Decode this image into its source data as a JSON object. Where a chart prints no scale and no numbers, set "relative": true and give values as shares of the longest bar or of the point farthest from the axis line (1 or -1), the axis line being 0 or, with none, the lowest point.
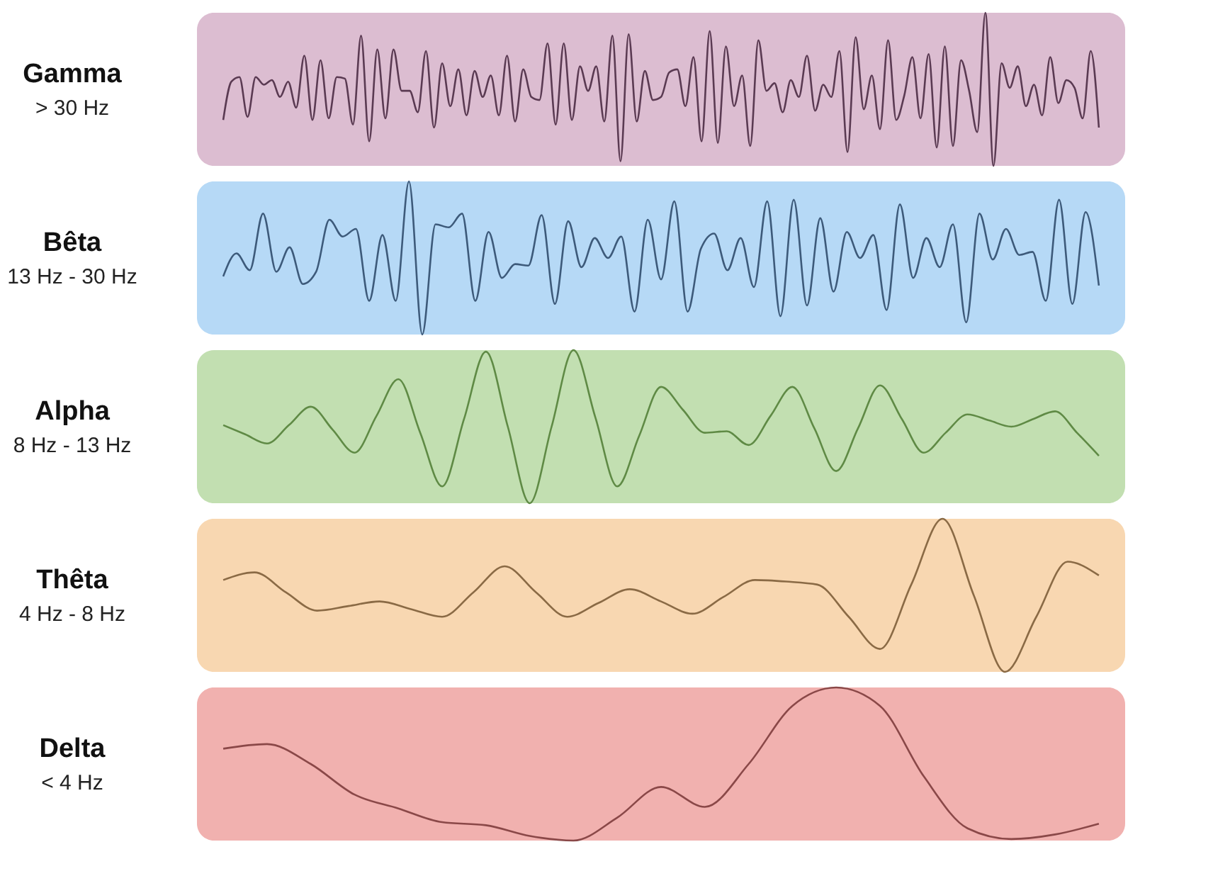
{
  "chart_data": [
    {
      "type": "line",
      "title": "Gamma",
      "subtitle": "> 30 Hz",
      "relative": true,
      "categories": [
        null,
        null,
        null,
        null,
        null,
        null,
        null,
        null,
        null,
        null,
        null,
        null,
        null,
        null,
        null,
        null,
        null,
        null,
        null,
        null,
        null,
        null,
        null,
        null,
        null,
        null,
        null,
        null,
        null,
        null,
        null,
        null,
        null,
        null,
        null,
        null,
        null,
        null,
        null,
        null,
        null,
        null,
        null,
        null,
        null,
        null,
        null,
        null,
        null,
        null,
        null,
        null,
        null,
        null,
        null,
        null,
        null,
        null,
        null,
        null,
        null,
        null,
        null,
        null,
        null,
        null,
        null,
        null,
        null,
        null,
        null,
        null,
        null,
        null,
        null,
        null,
        null,
        null,
        null,
        null,
        null,
        null,
        null,
        null,
        null,
        null,
        null,
        null,
        null,
        null,
        null,
        null,
        null,
        null,
        null,
        null,
        null,
        null,
        null,
        null,
        null,
        null,
        null,
        null,
        null,
        null,
        null,
        null,
        null
      ],
      "series": [
        {
          "color": "#5a3a52",
          "values": [
            0.3,
            0.55,
            0.58,
            0.32,
            0.58,
            0.53,
            0.56,
            0.45,
            0.55,
            0.38,
            0.72,
            0.3,
            0.69,
            0.31,
            0.58,
            0.57,
            0.27,
            0.85,
            0.16,
            0.76,
            0.31,
            0.76,
            0.49,
            0.49,
            0.35,
            0.75,
            0.25,
            0.67,
            0.39,
            0.63,
            0.33,
            0.62,
            0.45,
            0.59,
            0.33,
            0.72,
            0.29,
            0.63,
            0.45,
            0.43,
            0.8,
            0.27,
            0.8,
            0.3,
            0.65,
            0.49,
            0.65,
            0.29,
            0.85,
            0.03,
            0.86,
            0.29,
            0.62,
            0.43,
            0.45,
            0.61,
            0.63,
            0.39,
            0.71,
            0.16,
            0.88,
            0.15,
            0.78,
            0.39,
            0.59,
            0.13,
            0.82,
            0.49,
            0.54,
            0.35,
            0.56,
            0.45,
            0.72,
            0.36,
            0.53,
            0.45,
            0.75,
            0.09,
            0.84,
            0.37,
            0.59,
            0.24,
            0.82,
            0.3,
            0.46,
            0.71,
            0.31,
            0.73,
            0.12,
            0.78,
            0.13,
            0.69,
            0.49,
            0.22,
            1,
            0,
            0.67,
            0.51,
            0.65,
            0.39,
            0.53,
            0.33,
            0.71,
            0.41,
            0.56,
            0.51,
            0.31,
            0.75,
            0.25
          ]
        }
      ]
    },
    {
      "type": "line",
      "title": "Bêta",
      "subtitle": "13 Hz - 30 Hz",
      "relative": true,
      "categories": [
        null,
        null,
        null,
        null,
        null,
        null,
        null,
        null,
        null,
        null,
        null,
        null,
        null,
        null,
        null,
        null,
        null,
        null,
        null,
        null,
        null,
        null,
        null,
        null,
        null,
        null,
        null,
        null,
        null,
        null,
        null,
        null,
        null,
        null,
        null,
        null,
        null,
        null,
        null,
        null,
        null,
        null,
        null,
        null,
        null,
        null,
        null,
        null,
        null,
        null,
        null,
        null,
        null,
        null,
        null,
        null,
        null,
        null,
        null,
        null,
        null,
        null,
        null,
        null,
        null,
        null,
        null
      ],
      "series": [
        {
          "color": "#3d5a7a",
          "values": [
            0.38,
            0.53,
            0.42,
            0.79,
            0.41,
            0.57,
            0.33,
            0.41,
            0.75,
            0.64,
            0.69,
            0.22,
            0.65,
            0.22,
            1,
            0,
            0.72,
            0.7,
            0.79,
            0.22,
            0.67,
            0.37,
            0.46,
            0.45,
            0.78,
            0.2,
            0.74,
            0.44,
            0.63,
            0.5,
            0.64,
            0.15,
            0.75,
            0.36,
            0.87,
            0.15,
            0.56,
            0.66,
            0.42,
            0.63,
            0.31,
            0.87,
            0.12,
            0.88,
            0.19,
            0.76,
            0.28,
            0.67,
            0.5,
            0.65,
            0.16,
            0.85,
            0.37,
            0.63,
            0.44,
            0.72,
            0.08,
            0.79,
            0.49,
            0.69,
            0.52,
            0.54,
            0.22,
            0.88,
            0.2,
            0.8,
            0.32
          ]
        }
      ]
    },
    {
      "type": "line",
      "title": "Alpha",
      "subtitle": "8 Hz - 13 Hz",
      "relative": true,
      "categories": [
        null,
        null,
        null,
        null,
        null,
        null,
        null,
        null,
        null,
        null,
        null,
        null,
        null,
        null,
        null,
        null,
        null,
        null,
        null,
        null,
        null,
        null,
        null,
        null,
        null,
        null,
        null,
        null,
        null,
        null,
        null,
        null,
        null,
        null,
        null,
        null,
        null,
        null,
        null,
        null,
        null
      ],
      "series": [
        {
          "color": "#5f8a45",
          "values": [
            0.51,
            0.45,
            0.39,
            0.51,
            0.63,
            0.48,
            0.33,
            0.57,
            0.81,
            0.46,
            0.11,
            0.55,
            0.99,
            0.5,
            0,
            0.5,
            1,
            0.56,
            0.11,
            0.44,
            0.76,
            0.61,
            0.46,
            0.47,
            0.38,
            0.57,
            0.76,
            0.49,
            0.21,
            0.49,
            0.77,
            0.55,
            0.33,
            0.46,
            0.58,
            0.54,
            0.5,
            0.55,
            0.6,
            0.46,
            0.31
          ]
        }
      ]
    },
    {
      "type": "line",
      "title": "Thêta",
      "subtitle": "4 Hz - 8 Hz",
      "relative": true,
      "categories": [
        null,
        null,
        null,
        null,
        null,
        null,
        null,
        null,
        null,
        null,
        null,
        null,
        null,
        null,
        null,
        null,
        null,
        null,
        null,
        null,
        null,
        null,
        null,
        null,
        null,
        null,
        null,
        null,
        null
      ],
      "series": [
        {
          "color": "#8a6a45",
          "values": [
            0.6,
            0.65,
            0.52,
            0.4,
            0.43,
            0.46,
            0.41,
            0.36,
            0.52,
            0.69,
            0.52,
            0.36,
            0.45,
            0.54,
            0.46,
            0.38,
            0.49,
            0.6,
            0.59,
            0.57,
            0.36,
            0.15,
            0.57,
            1,
            0.5,
            0,
            0.36,
            0.72,
            0.63
          ]
        }
      ]
    },
    {
      "type": "line",
      "title": "Delta",
      "subtitle": "< 4 Hz",
      "relative": true,
      "categories": [
        null,
        null,
        null,
        null,
        null,
        null,
        null,
        null,
        null,
        null,
        null,
        null,
        null,
        null,
        null,
        null,
        null,
        null,
        null,
        null,
        null
      ],
      "series": [
        {
          "color": "#8a4848",
          "values": [
            0.6,
            0.63,
            0.5,
            0.3,
            0.21,
            0.12,
            0.1,
            0.03,
            0,
            0.15,
            0.35,
            0.22,
            0.5,
            0.88,
            1,
            0.88,
            0.42,
            0.08,
            0.01,
            0.04,
            0.11
          ]
        }
      ]
    }
  ]
}
